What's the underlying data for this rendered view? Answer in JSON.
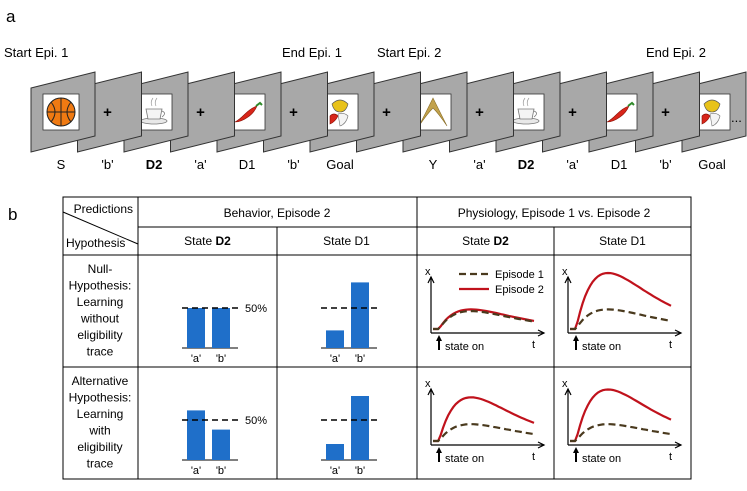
{
  "panel_labels": {
    "a": "a",
    "b": "b"
  },
  "timeline": {
    "episode_labels": [
      "Start Epi. 1",
      "End Epi. 1",
      "Start Epi. 2",
      "End Epi. 2"
    ],
    "fixation_symbol": "+",
    "ellipsis": "...",
    "screens": [
      {
        "label": "S",
        "image": "basketball-icon",
        "bold": false
      },
      {
        "label": "'b'",
        "image": "fixation",
        "bold": false
      },
      {
        "label": "D2",
        "image": "teacup-icon",
        "bold": true
      },
      {
        "label": "'a'",
        "image": "fixation",
        "bold": false
      },
      {
        "label": "D1",
        "image": "chili-pepper-icon",
        "bold": false
      },
      {
        "label": "'b'",
        "image": "fixation",
        "bold": false
      },
      {
        "label": "Goal",
        "image": "goal-icon",
        "bold": false
      },
      {
        "label": "",
        "image": "fixation",
        "bold": false
      },
      {
        "label": "Y",
        "image": "boomerang-icon",
        "bold": false
      },
      {
        "label": "'a'",
        "image": "fixation",
        "bold": false
      },
      {
        "label": "D2",
        "image": "teacup-icon",
        "bold": true
      },
      {
        "label": "'a'",
        "image": "fixation",
        "bold": false
      },
      {
        "label": "D1",
        "image": "chili-pepper-icon",
        "bold": false
      },
      {
        "label": "'b'",
        "image": "fixation",
        "bold": false
      },
      {
        "label": "Goal",
        "image": "goal-icon",
        "bold": false
      }
    ]
  },
  "table": {
    "corner_top": "Predictions",
    "corner_bottom": "Hypothesis",
    "group_headers": [
      "Behavior, Episode 2",
      "Physiology, Episode 1 vs. Episode 2"
    ],
    "col_headers": [
      {
        "prefix": "State ",
        "name": "D2",
        "bold": true
      },
      {
        "prefix": "State ",
        "name": "D1",
        "bold": false
      },
      {
        "prefix": "State ",
        "name": "D2",
        "bold": true
      },
      {
        "prefix": "State ",
        "name": "D1",
        "bold": false
      }
    ],
    "rows": [
      {
        "lines": [
          "Null-",
          "Hypothesis:",
          "Learning",
          "without",
          "eligibility",
          "trace"
        ]
      },
      {
        "lines": [
          "Alternative",
          "Hypothesis:",
          "Learning",
          "with",
          "eligibility",
          "trace"
        ]
      }
    ]
  },
  "chart_data": {
    "type": "bar",
    "colors": {
      "bar": "#1f6fc9",
      "episode1": "#4a3a1e",
      "episode2": "#c0121c"
    },
    "bar_categories": [
      "'a'",
      "'b'"
    ],
    "reference_label": "50%",
    "bars": [
      {
        "row": 0,
        "state": "D2",
        "values": [
          50,
          50
        ]
      },
      {
        "row": 0,
        "state": "D1",
        "values": [
          22,
          82
        ]
      },
      {
        "row": 1,
        "state": "D2",
        "values": [
          62,
          38
        ]
      },
      {
        "row": 1,
        "state": "D1",
        "values": [
          20,
          80
        ]
      }
    ],
    "physiology": {
      "y_axis_label": "x",
      "x_axis_label": "t",
      "marker_label": "state on",
      "legend": [
        "Episode 1",
        "Episode 2"
      ],
      "panels": [
        {
          "row": 0,
          "state": "D2",
          "ep1_peak": 0.32,
          "ep2_peak": 0.35
        },
        {
          "row": 0,
          "state": "D1",
          "ep1_peak": 0.35,
          "ep2_peak": 1.0
        },
        {
          "row": 1,
          "state": "D2",
          "ep1_peak": 0.3,
          "ep2_peak": 0.78
        },
        {
          "row": 1,
          "state": "D1",
          "ep1_peak": 0.3,
          "ep2_peak": 0.92
        }
      ]
    }
  }
}
